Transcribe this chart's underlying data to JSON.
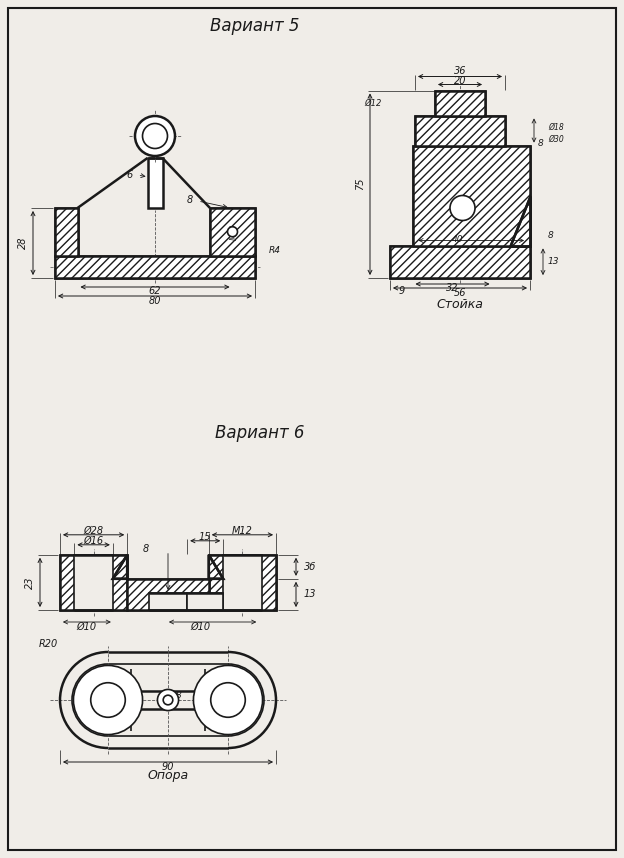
{
  "title1": "Вариант 5",
  "title2": "Вариант 6",
  "label1": "Стойка",
  "label2": "Опора",
  "bg_color": "#f0ede8",
  "line_color": "#1a1a1a",
  "figsize": [
    6.24,
    8.58
  ],
  "dpi": 100
}
